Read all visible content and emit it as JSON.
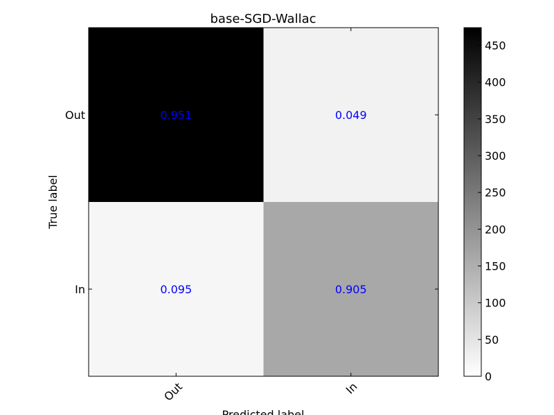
{
  "chart_data": {
    "type": "heatmap",
    "title": "base-SGD-Wallac",
    "xlabel": "Predicted label",
    "ylabel": "True label",
    "x_categories": [
      "Out",
      "In"
    ],
    "y_categories": [
      "Out",
      "In"
    ],
    "annotations": [
      [
        "0.951",
        "0.049"
      ],
      [
        "0.095",
        "0.905"
      ]
    ],
    "counts": [
      [
        474,
        24
      ],
      [
        17,
        162
      ]
    ],
    "colormap": "Greys",
    "annotation_color": "#0000ff",
    "colorbar": {
      "ticks": [
        "0",
        "50",
        "100",
        "150",
        "200",
        "250",
        "300",
        "350",
        "400",
        "450"
      ],
      "range": [
        0,
        474
      ]
    },
    "grid": false
  }
}
